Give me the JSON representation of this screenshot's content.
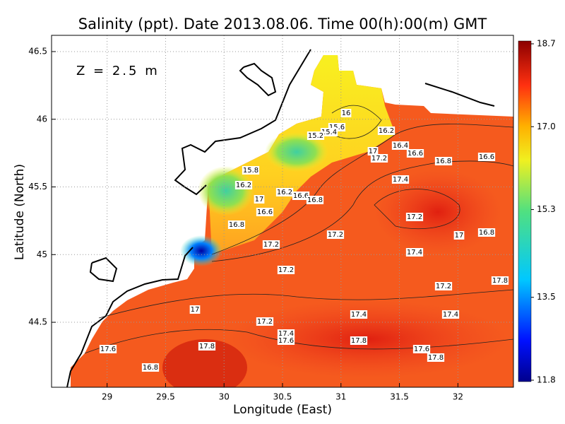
{
  "title": "Salinity (ppt). Date 2013.08.06. Time 00(h):00(m) GMT",
  "annotation": "Z = 2.5 m",
  "x_axis": {
    "label": "Longitude (East)",
    "lim": [
      28.525,
      32.475
    ],
    "ticks": [
      29,
      29.5,
      30,
      30.5,
      31,
      31.5,
      32
    ]
  },
  "y_axis": {
    "label": "Latitude (North)",
    "lim": [
      44.02,
      46.62
    ],
    "ticks": [
      44.5,
      45,
      45.5,
      46,
      46.5
    ]
  },
  "colorbar": {
    "lim": [
      11.8,
      18.7
    ],
    "ticks": [
      11.8,
      13.5,
      15.3,
      {
        "value": 17,
        "label": "17.0"
      },
      18.7
    ]
  },
  "contour_labels": [
    16,
    15.6,
    15.4,
    15.2,
    16.2,
    16.4,
    16.6,
    17,
    17.2,
    16.8,
    16.6,
    15.8,
    16.2,
    16.2,
    16.6,
    16.8,
    17,
    17.4,
    16.6,
    16.8,
    17.2,
    17.2,
    17,
    16.8,
    17.2,
    17.4,
    17.2,
    17.2,
    17.8,
    17,
    17.4,
    17.4,
    17.2,
    17.4,
    17.6,
    17.8,
    17.6,
    17.8,
    17.6,
    17.8,
    16.8
  ]
}
